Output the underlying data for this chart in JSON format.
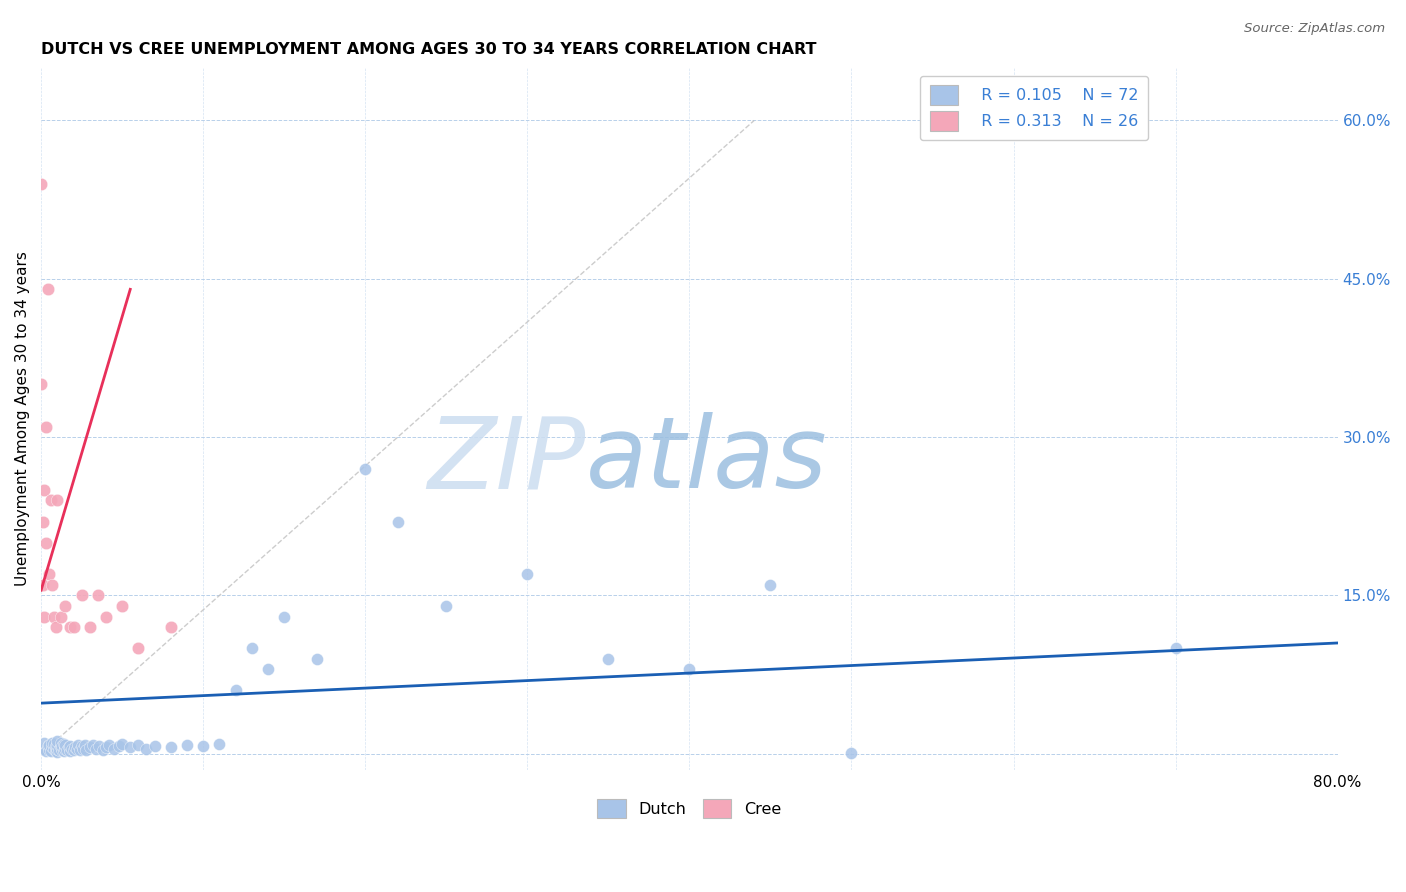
{
  "title": "DUTCH VS CREE UNEMPLOYMENT AMONG AGES 30 TO 34 YEARS CORRELATION CHART",
  "source": "Source: ZipAtlas.com",
  "ylabel": "Unemployment Among Ages 30 to 34 years",
  "xlim": [
    0,
    0.8
  ],
  "ylim": [
    -0.015,
    0.65
  ],
  "xticks": [
    0.0,
    0.1,
    0.2,
    0.3,
    0.4,
    0.5,
    0.6,
    0.7,
    0.8
  ],
  "ytick_right": [
    0.0,
    0.15,
    0.3,
    0.45,
    0.6
  ],
  "ytick_right_labels": [
    "",
    "15.0%",
    "30.0%",
    "45.0%",
    "60.0%"
  ],
  "dutch_color": "#a8c4e8",
  "cree_color": "#f4a7b9",
  "dutch_line_color": "#1a5fb4",
  "cree_line_color": "#e8305a",
  "ref_line_color": "#c0c0c0",
  "legend_R_dutch": "R = 0.105",
  "legend_N_dutch": "N = 72",
  "legend_R_cree": "R = 0.313",
  "legend_N_cree": "N = 26",
  "watermark_zip": "ZIP",
  "watermark_atlas": "atlas",
  "dutch_scatter_x": [
    0.001,
    0.002,
    0.003,
    0.004,
    0.005,
    0.005,
    0.006,
    0.007,
    0.007,
    0.008,
    0.008,
    0.009,
    0.009,
    0.01,
    0.01,
    0.01,
    0.01,
    0.011,
    0.012,
    0.012,
    0.013,
    0.013,
    0.014,
    0.014,
    0.015,
    0.015,
    0.016,
    0.017,
    0.018,
    0.018,
    0.019,
    0.02,
    0.021,
    0.022,
    0.023,
    0.024,
    0.025,
    0.026,
    0.027,
    0.028,
    0.03,
    0.032,
    0.034,
    0.036,
    0.038,
    0.04,
    0.042,
    0.045,
    0.048,
    0.05,
    0.055,
    0.06,
    0.065,
    0.07,
    0.08,
    0.09,
    0.1,
    0.11,
    0.12,
    0.13,
    0.14,
    0.15,
    0.17,
    0.2,
    0.22,
    0.25,
    0.3,
    0.35,
    0.4,
    0.45,
    0.5,
    0.7
  ],
  "dutch_scatter_y": [
    0.005,
    0.01,
    0.003,
    0.007,
    0.004,
    0.008,
    0.003,
    0.006,
    0.01,
    0.005,
    0.009,
    0.003,
    0.007,
    0.002,
    0.005,
    0.008,
    0.012,
    0.004,
    0.006,
    0.01,
    0.004,
    0.007,
    0.003,
    0.009,
    0.005,
    0.008,
    0.004,
    0.006,
    0.003,
    0.007,
    0.005,
    0.004,
    0.006,
    0.005,
    0.008,
    0.004,
    0.007,
    0.005,
    0.008,
    0.004,
    0.006,
    0.008,
    0.005,
    0.007,
    0.004,
    0.006,
    0.008,
    0.005,
    0.007,
    0.009,
    0.006,
    0.008,
    0.005,
    0.007,
    0.006,
    0.008,
    0.007,
    0.009,
    0.06,
    0.1,
    0.08,
    0.13,
    0.09,
    0.27,
    0.22,
    0.14,
    0.17,
    0.09,
    0.08,
    0.16,
    0.001,
    0.1
  ],
  "cree_scatter_x": [
    0.0,
    0.0,
    0.001,
    0.001,
    0.002,
    0.002,
    0.003,
    0.003,
    0.004,
    0.005,
    0.006,
    0.007,
    0.008,
    0.009,
    0.01,
    0.012,
    0.015,
    0.018,
    0.02,
    0.025,
    0.03,
    0.035,
    0.04,
    0.05,
    0.06,
    0.08
  ],
  "cree_scatter_y": [
    0.54,
    0.35,
    0.22,
    0.16,
    0.13,
    0.25,
    0.31,
    0.2,
    0.44,
    0.17,
    0.24,
    0.16,
    0.13,
    0.12,
    0.24,
    0.13,
    0.14,
    0.12,
    0.12,
    0.15,
    0.12,
    0.15,
    0.13,
    0.14,
    0.1,
    0.12
  ],
  "dutch_trend_x": [
    0.0,
    0.8
  ],
  "dutch_trend_y": [
    0.048,
    0.105
  ],
  "cree_trend_x": [
    0.0,
    0.055
  ],
  "cree_trend_y": [
    0.155,
    0.44
  ],
  "ref_line_x": [
    0.0,
    0.44
  ],
  "ref_line_y": [
    0.0,
    0.6
  ]
}
